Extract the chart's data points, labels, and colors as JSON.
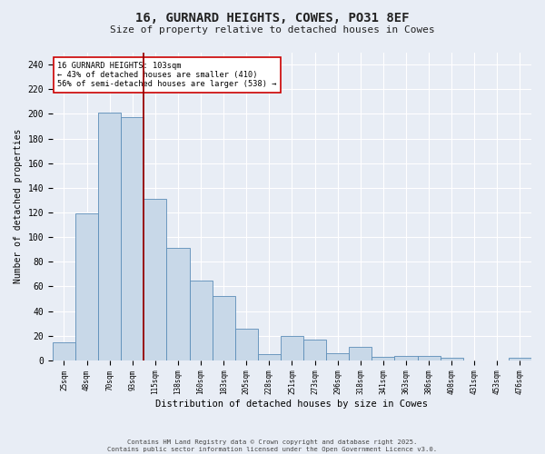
{
  "title": "16, GURNARD HEIGHTS, COWES, PO31 8EF",
  "subtitle": "Size of property relative to detached houses in Cowes",
  "xlabel": "Distribution of detached houses by size in Cowes",
  "ylabel": "Number of detached properties",
  "categories": [
    "25sqm",
    "48sqm",
    "70sqm",
    "93sqm",
    "115sqm",
    "138sqm",
    "160sqm",
    "183sqm",
    "205sqm",
    "228sqm",
    "251sqm",
    "273sqm",
    "296sqm",
    "318sqm",
    "341sqm",
    "363sqm",
    "386sqm",
    "408sqm",
    "431sqm",
    "453sqm",
    "476sqm"
  ],
  "values": [
    15,
    119,
    201,
    197,
    131,
    91,
    65,
    52,
    26,
    5,
    20,
    17,
    6,
    11,
    3,
    4,
    4,
    2,
    0,
    0,
    2
  ],
  "bar_color": "#c8d8e8",
  "bar_edge_color": "#5b8db8",
  "vline_x": 3.5,
  "vline_color": "#990000",
  "annotation_text": "16 GURNARD HEIGHTS: 103sqm\n← 43% of detached houses are smaller (410)\n56% of semi-detached houses are larger (538) →",
  "annotation_box_color": "#ffffff",
  "annotation_box_edge": "#cc0000",
  "ylim": [
    0,
    250
  ],
  "yticks": [
    0,
    20,
    40,
    60,
    80,
    100,
    120,
    140,
    160,
    180,
    200,
    220,
    240
  ],
  "background_color": "#e8edf5",
  "grid_color": "#ffffff",
  "footer_line1": "Contains HM Land Registry data © Crown copyright and database right 2025.",
  "footer_line2": "Contains public sector information licensed under the Open Government Licence v3.0."
}
